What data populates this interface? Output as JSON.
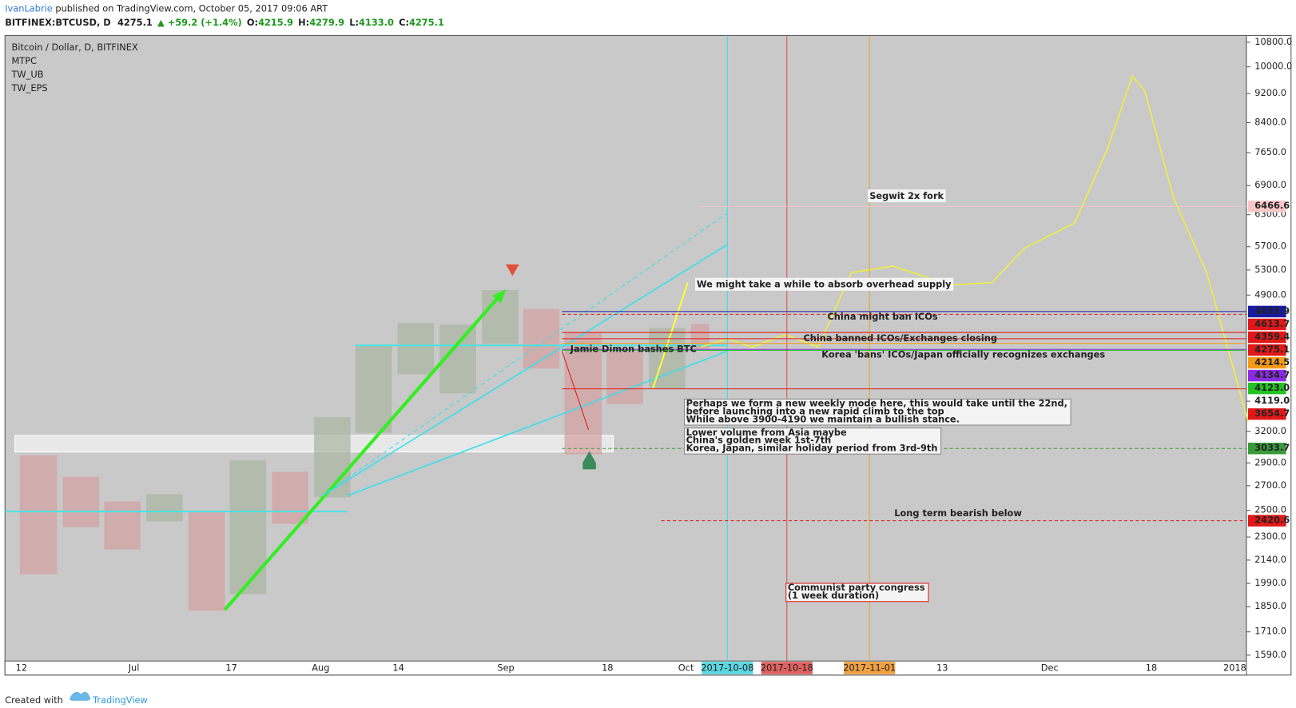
{
  "header": {
    "author": "IvanLabrie",
    "published": " published on TradingView.com, October 05, 2017 09:06 ART",
    "symbol": "BITFINEX:BTCUSD, D",
    "last": "4275.1",
    "change": "▲ +59.2 (+1.4%)",
    "open_label": "O:",
    "open": "4215.9",
    "high_label": "H:",
    "high": "4279.9",
    "low_label": "L:",
    "low": "4133.0",
    "close_label": "C:",
    "close": "4275.1"
  },
  "legend": [
    "Bitcoin / Dollar, D, BITFINEX",
    "MTPC",
    "TW_UB",
    "TW_EPS"
  ],
  "price_axis": {
    "scale": "log",
    "ylim": [
      1494,
      11030
    ],
    "ticks": [
      {
        "value": 10800,
        "label": "10800.0"
      },
      {
        "value": 10000,
        "label": "10000.0"
      },
      {
        "value": 9200,
        "label": "9200.0"
      },
      {
        "value": 8400,
        "label": "8400.0"
      },
      {
        "value": 7650,
        "label": "7650.0"
      },
      {
        "value": 6900,
        "label": "6900.0"
      },
      {
        "value": 6300,
        "label": "6300.0"
      },
      {
        "value": 5700,
        "label": "5700.0"
      },
      {
        "value": 5300,
        "label": "5300.0"
      },
      {
        "value": 4900,
        "label": "4900.0"
      },
      {
        "value": 3200,
        "label": "3200.0"
      },
      {
        "value": 2900,
        "label": "2900.0"
      },
      {
        "value": 2700,
        "label": "2700.0"
      },
      {
        "value": 2500,
        "label": "2500.0"
      },
      {
        "value": 2300,
        "label": "2300.0"
      },
      {
        "value": 2140,
        "label": "2140.0"
      },
      {
        "value": 1990,
        "label": "1990.0"
      },
      {
        "value": 1850,
        "label": "1850.0"
      },
      {
        "value": 1710,
        "label": "1710.0"
      },
      {
        "value": 1590,
        "label": "1590.0"
      }
    ],
    "price_labels": [
      {
        "value": 6466.6,
        "label": "6466.6",
        "color": "#f8c8c8"
      },
      {
        "value": 4653.9,
        "label": "4653.9",
        "color": "#1a1aa0"
      },
      {
        "value": 4613.7,
        "label": "4613.7",
        "color": "#e01818"
      },
      {
        "value": 4359.4,
        "label": "4359.4",
        "color": "#e01818"
      },
      {
        "value": 4275.1,
        "label": "4275.1",
        "color": "#e01818"
      },
      {
        "value": 4214.5,
        "label": "4214.5",
        "color": "#f59a16"
      },
      {
        "value": 4134.7,
        "label": "4134.7",
        "color": "#8a2be2"
      },
      {
        "value": 4123,
        "label": "4123.0",
        "color": "#22c322"
      },
      {
        "value": 4119,
        "label": "4119.0",
        "color": "none"
      },
      {
        "value": 3654.7,
        "label": "3654.7",
        "color": "#e01818"
      },
      {
        "value": 3033.7,
        "label": "3033.7",
        "color": "#3a9a3a"
      },
      {
        "value": 2420.6,
        "label": "2420.6",
        "color": "#e01818"
      }
    ]
  },
  "date_axis": [
    "12",
    "Jul",
    "17",
    "Aug",
    "14",
    "Sep",
    "18",
    "Oct",
    "2017-10-08",
    "2017-10-18",
    "2017-11-01",
    "13",
    "Dec",
    "18",
    "2018"
  ],
  "annotations": [
    "Segwit 2x fork",
    "We might take a while to absorb overhead supply",
    "China might ban ICOs",
    "China banned ICOs/Exchanges closing",
    "Korea 'bans' ICOs/Japan officially recognizes exchanges",
    "Jamie Dimon bashes BTC",
    "Long term bearish below"
  ],
  "note_weekly": [
    "Perhaps we form a new weekly mode here, this would take until the 22nd,",
    "before launching into a new rapid climb to the top",
    "While above 3900-4190 we maintain a bullish stance."
  ],
  "note_asia": [
    "Lower volume from Asia maybe",
    "China's golden week 1st-7th",
    "Korea, Japan, similar holiday period from 3rd-9th"
  ],
  "note_congress": [
    "Communist party congress",
    "(1 week duration)"
  ],
  "footer": {
    "created": "Created with",
    "brand": "TradingView"
  }
}
